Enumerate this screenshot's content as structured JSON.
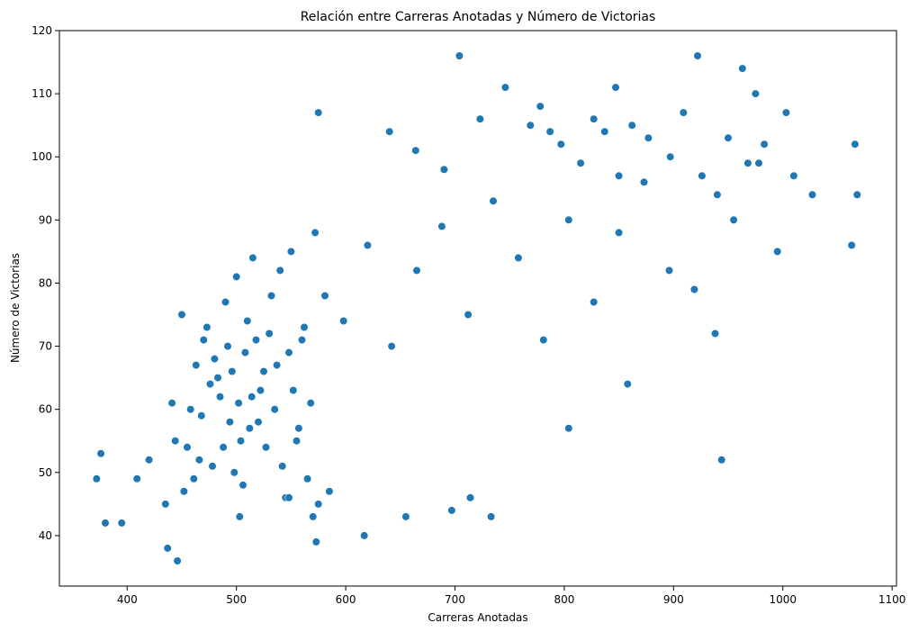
{
  "chart_data": {
    "type": "scatter",
    "title": "Relación entre Carreras Anotadas y Número de Victorias",
    "xlabel": "Carreras Anotadas",
    "ylabel": "Número de Victorias",
    "xlim": [
      338,
      1104
    ],
    "ylim": [
      32,
      120
    ],
    "xticks": [
      400,
      500,
      600,
      700,
      800,
      900,
      1000,
      1100
    ],
    "yticks": [
      40,
      50,
      60,
      70,
      80,
      90,
      100,
      110,
      120
    ],
    "grid": false,
    "marker_color": "#1f77b4",
    "marker_edge": "#ffffff",
    "series": [
      {
        "x": [
          372,
          376,
          380,
          395,
          409,
          420,
          435,
          437,
          441,
          444,
          446,
          452,
          450,
          455,
          458,
          461,
          463,
          466,
          468,
          470,
          473,
          476,
          478,
          480,
          483,
          485,
          488,
          490,
          492,
          494,
          496,
          498,
          500,
          502,
          504,
          506,
          508,
          510,
          512,
          514,
          515,
          518,
          520,
          522,
          525,
          527,
          530,
          532,
          535,
          537,
          540,
          542,
          545,
          548,
          550,
          552,
          555,
          557,
          560,
          562,
          565,
          568,
          570,
          572,
          575,
          503,
          548,
          573,
          585,
          617,
          655,
          697,
          714,
          733,
          804,
          858,
          944,
          575,
          640,
          664,
          690,
          704,
          723,
          746,
          769,
          778,
          787,
          797,
          815,
          827,
          837,
          847,
          850,
          862,
          877,
          897,
          909,
          922,
          926,
          940,
          950,
          963,
          968,
          975,
          983,
          1003,
          1010,
          1027,
          1063,
          1066,
          1068,
          581,
          598,
          620,
          642,
          665,
          688,
          712,
          735,
          758,
          781,
          804,
          827,
          850,
          873,
          896,
          919,
          938,
          955,
          978,
          995
        ],
        "y": [
          49,
          53,
          42,
          42,
          49,
          52,
          45,
          38,
          61,
          55,
          36,
          47,
          75,
          54,
          60,
          49,
          67,
          52,
          59,
          71,
          73,
          64,
          51,
          68,
          65,
          62,
          54,
          77,
          70,
          58,
          66,
          50,
          81,
          61,
          55,
          48,
          69,
          74,
          57,
          62,
          84,
          71,
          58,
          63,
          66,
          54,
          72,
          78,
          60,
          67,
          82,
          51,
          46,
          69,
          85,
          63,
          55,
          57,
          71,
          73,
          49,
          61,
          43,
          88,
          45,
          43,
          46,
          39,
          47,
          40,
          43,
          44,
          46,
          43,
          57,
          64,
          52,
          107,
          104,
          101,
          98,
          116,
          106,
          111,
          105,
          108,
          104,
          102,
          99,
          106,
          104,
          111,
          97,
          105,
          103,
          100,
          107,
          116,
          97,
          94,
          103,
          114,
          99,
          110,
          102,
          107,
          97,
          94,
          86,
          102,
          94,
          78,
          74,
          86,
          70,
          82,
          89,
          75,
          93,
          84,
          71,
          90,
          77,
          88,
          96,
          82,
          79,
          72,
          90,
          99,
          85
        ]
      }
    ]
  }
}
